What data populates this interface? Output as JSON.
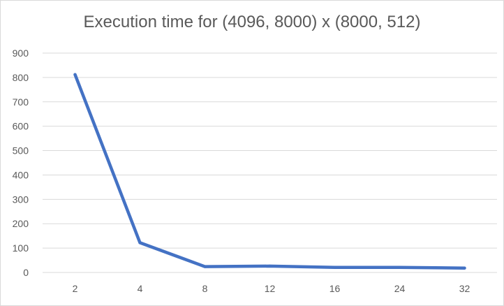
{
  "chart_data": {
    "type": "line",
    "title": "Execution time for (4096, 8000) x (8000, 512)",
    "xlabel": "",
    "ylabel": "",
    "categories": [
      "2",
      "4",
      "8",
      "12",
      "16",
      "24",
      "32"
    ],
    "series": [
      {
        "values": [
          812,
          122,
          24,
          26,
          21,
          21,
          18
        ],
        "color": "#4472c4"
      }
    ],
    "ylim": [
      0,
      900
    ],
    "yticks": [
      0,
      100,
      200,
      300,
      400,
      500,
      600,
      700,
      800,
      900
    ],
    "grid": true,
    "legend": "none",
    "gridline_color": "#d9d9d9",
    "text_color": "#595959"
  }
}
